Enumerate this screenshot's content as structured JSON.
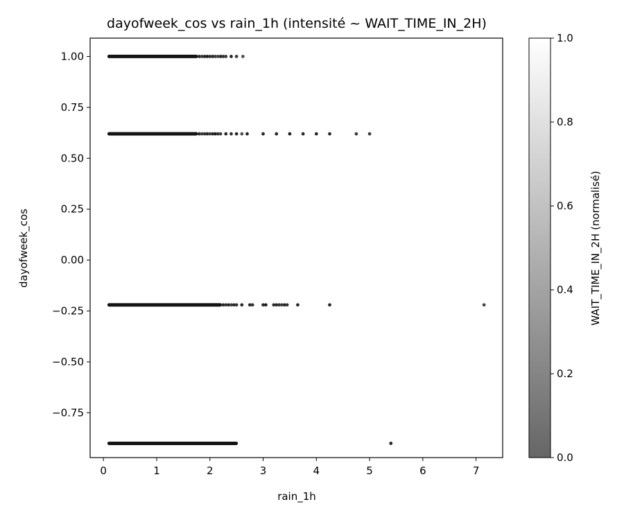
{
  "chart_data": {
    "type": "scatter",
    "title": "dayofweek_cos vs rain_1h (intensité ~ WAIT_TIME_IN_2H)",
    "xlabel": "rain_1h",
    "ylabel": "dayofweek_cos",
    "xlim": [
      -0.25,
      7.5
    ],
    "ylim": [
      -0.97,
      1.09
    ],
    "xticks": [
      0,
      1,
      2,
      3,
      4,
      5,
      6,
      7
    ],
    "xtick_labels": [
      "0",
      "1",
      "2",
      "3",
      "4",
      "5",
      "6",
      "7"
    ],
    "yticks": [
      1.0,
      0.75,
      0.5,
      0.25,
      0.0,
      -0.25,
      -0.5,
      -0.75
    ],
    "ytick_labels": [
      "1.00",
      "0.75",
      "0.50",
      "0.25",
      "0.00",
      "−0.25",
      "−0.50",
      "−0.75"
    ],
    "grid": false,
    "colorbar": {
      "label": "WAIT_TIME_IN_2H (normalisé)",
      "range": [
        0.0,
        1.0
      ],
      "ticks": [
        0.0,
        0.2,
        0.4,
        0.6,
        0.8,
        1.0
      ],
      "tick_labels": [
        "0.0",
        "0.2",
        "0.4",
        "0.6",
        "0.8",
        "1.0"
      ],
      "color_low": "#666666",
      "color_high": "#ffffff"
    },
    "series": [
      {
        "y": 1.0,
        "dense_range": [
          0.1,
          1.75
        ],
        "points": [
          {
            "x": 1.8,
            "v": 0.1
          },
          {
            "x": 1.85,
            "v": 0.2
          },
          {
            "x": 1.9,
            "v": 0.1
          },
          {
            "x": 1.95,
            "v": 0.05
          },
          {
            "x": 2.0,
            "v": 0.15
          },
          {
            "x": 2.05,
            "v": 0.1
          },
          {
            "x": 2.1,
            "v": 0.2
          },
          {
            "x": 2.15,
            "v": 0.25
          },
          {
            "x": 2.2,
            "v": 0.1
          },
          {
            "x": 2.25,
            "v": 0.15
          },
          {
            "x": 2.3,
            "v": 0.2
          },
          {
            "x": 2.4,
            "v": 0.1
          },
          {
            "x": 2.5,
            "v": 0.2
          },
          {
            "x": 2.62,
            "v": 0.3
          }
        ]
      },
      {
        "y": 0.62,
        "dense_range": [
          0.1,
          1.75
        ],
        "points": [
          {
            "x": 1.8,
            "v": 0.1
          },
          {
            "x": 1.85,
            "v": 0.2
          },
          {
            "x": 1.9,
            "v": 0.15
          },
          {
            "x": 1.95,
            "v": 0.1
          },
          {
            "x": 2.0,
            "v": 0.2
          },
          {
            "x": 2.05,
            "v": 0.1
          },
          {
            "x": 2.1,
            "v": 0.05
          },
          {
            "x": 2.15,
            "v": 0.15
          },
          {
            "x": 2.2,
            "v": 0.2
          },
          {
            "x": 2.3,
            "v": 0.1
          },
          {
            "x": 2.4,
            "v": 0.15
          },
          {
            "x": 2.5,
            "v": 0.1
          },
          {
            "x": 2.6,
            "v": 0.3
          },
          {
            "x": 2.7,
            "v": 0.1
          },
          {
            "x": 3.0,
            "v": 0.1
          },
          {
            "x": 3.25,
            "v": 0.1
          },
          {
            "x": 3.5,
            "v": 0.05
          },
          {
            "x": 3.75,
            "v": 0.1
          },
          {
            "x": 4.0,
            "v": 0.1
          },
          {
            "x": 4.25,
            "v": 0.1
          },
          {
            "x": 4.75,
            "v": 0.2
          },
          {
            "x": 5.0,
            "v": 0.2
          }
        ]
      },
      {
        "y": -0.22,
        "dense_range": [
          0.1,
          2.2
        ],
        "points": [
          {
            "x": 2.25,
            "v": 0.1
          },
          {
            "x": 2.3,
            "v": 0.15
          },
          {
            "x": 2.35,
            "v": 0.1
          },
          {
            "x": 2.4,
            "v": 0.2
          },
          {
            "x": 2.45,
            "v": 0.1
          },
          {
            "x": 2.5,
            "v": 0.15
          },
          {
            "x": 2.6,
            "v": 0.1
          },
          {
            "x": 2.75,
            "v": 0.1
          },
          {
            "x": 2.8,
            "v": 0.15
          },
          {
            "x": 3.0,
            "v": 0.1
          },
          {
            "x": 3.05,
            "v": 0.05
          },
          {
            "x": 3.2,
            "v": 0.1
          },
          {
            "x": 3.25,
            "v": 0.1
          },
          {
            "x": 3.3,
            "v": 0.15
          },
          {
            "x": 3.35,
            "v": 0.2
          },
          {
            "x": 3.4,
            "v": 0.1
          },
          {
            "x": 3.45,
            "v": 0.15
          },
          {
            "x": 3.65,
            "v": 0.1
          },
          {
            "x": 4.25,
            "v": 0.1
          },
          {
            "x": 7.15,
            "v": 0.25
          }
        ]
      },
      {
        "y": -0.9,
        "dense_range": [
          0.1,
          2.5
        ],
        "points": [
          {
            "x": 5.4,
            "v": 0.1
          }
        ]
      }
    ]
  }
}
